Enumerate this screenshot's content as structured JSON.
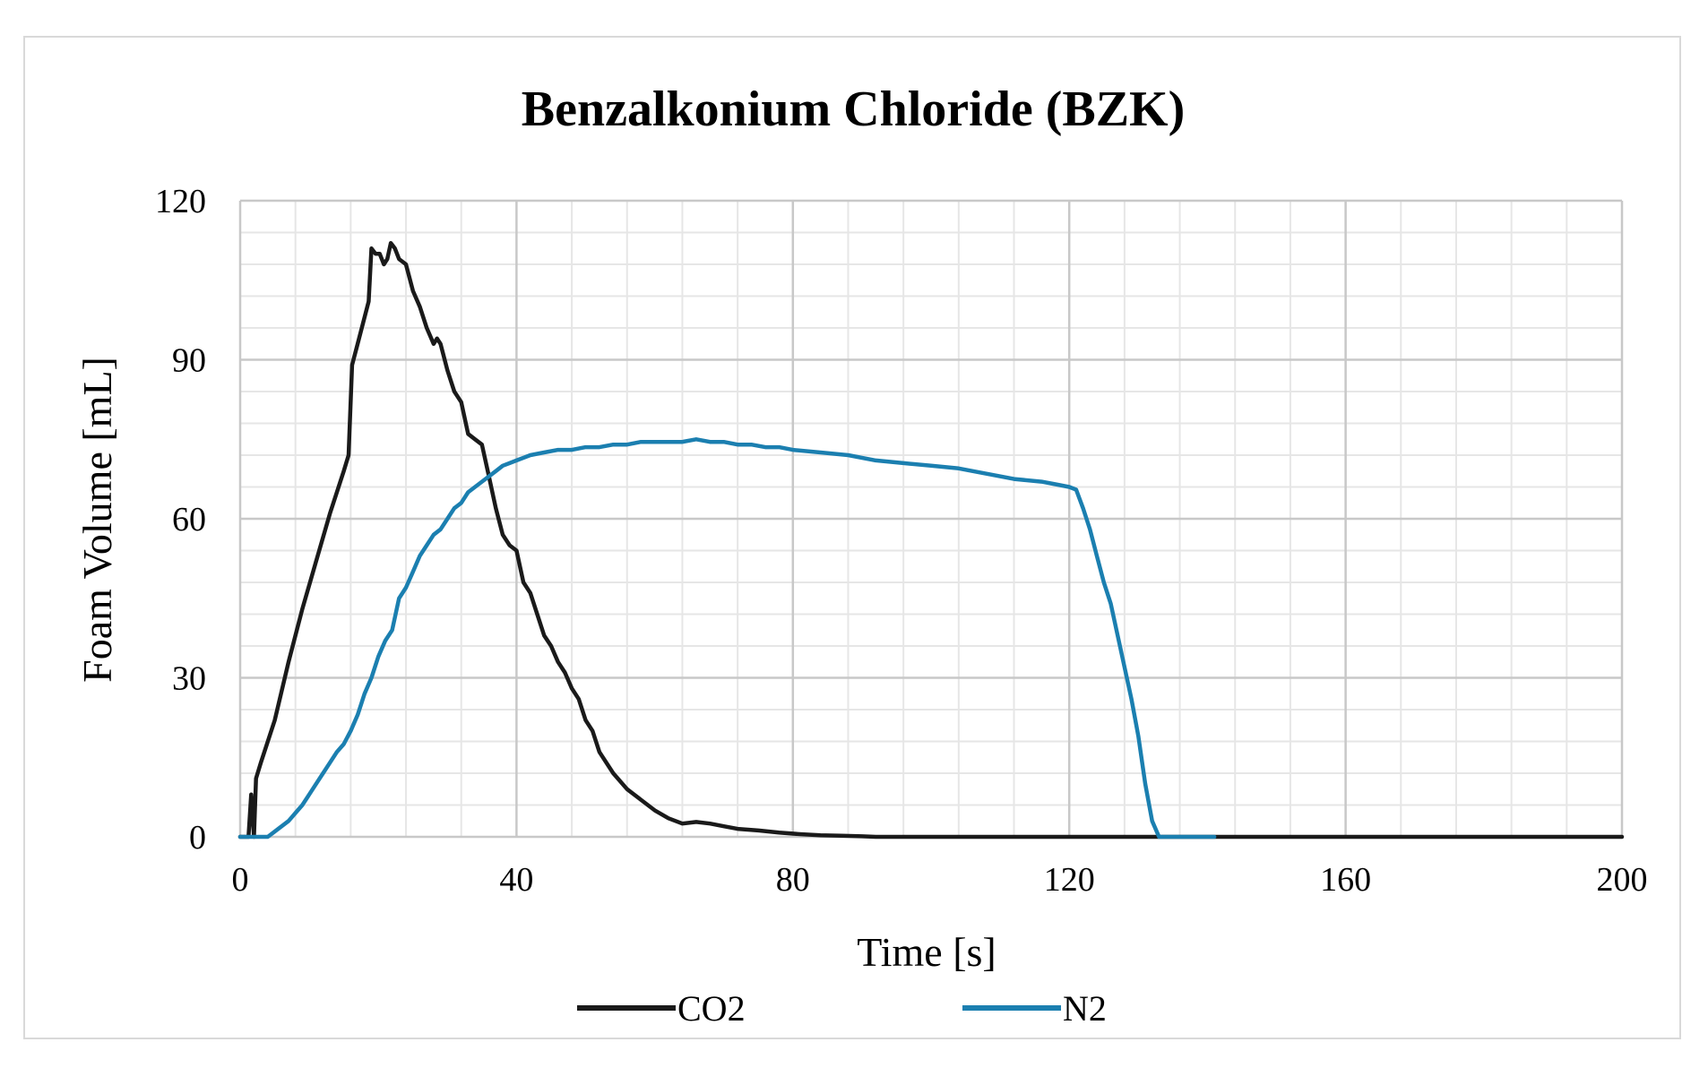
{
  "chart_data": {
    "type": "line",
    "title": "Benzalkonium Chloride (BZK)",
    "xlabel": "Time [s]",
    "ylabel": "Foam Volume [mL]",
    "xlim": [
      0,
      200
    ],
    "ylim": [
      0,
      120
    ],
    "x_ticks": [
      0,
      40,
      80,
      120,
      160,
      200
    ],
    "y_ticks": [
      0,
      30,
      60,
      90,
      120
    ],
    "x_tick_labels": [
      "0",
      "40",
      "80",
      "120",
      "160",
      "200"
    ],
    "y_tick_labels": [
      "0",
      "30",
      "60",
      "90",
      "120"
    ],
    "grid": true,
    "legend_position": "bottom",
    "series": [
      {
        "name": "CO2",
        "color": "#1a1a1a",
        "x": [
          0,
          1.2,
          1.6,
          2.0,
          2.3,
          3,
          5,
          7,
          9,
          11,
          13,
          15,
          15.7,
          16.2,
          17,
          18,
          18.6,
          19,
          19.6,
          20.2,
          20.8,
          21.3,
          21.8,
          22.4,
          23,
          24,
          25,
          26,
          27,
          28,
          28.5,
          29,
          30,
          31,
          32,
          33,
          34,
          35,
          36,
          37,
          38,
          39,
          40,
          41,
          42,
          43,
          44,
          45,
          46,
          47,
          48,
          49,
          50,
          51,
          52,
          54,
          56,
          58,
          60,
          62,
          64,
          66,
          68,
          70,
          72,
          75,
          78,
          81,
          84,
          87,
          90,
          92,
          100,
          120,
          140,
          160,
          180,
          200
        ],
        "values": [
          0,
          0,
          8,
          0,
          11,
          14,
          22,
          33,
          43,
          52,
          61,
          69,
          72,
          89,
          93,
          98,
          101,
          111,
          110,
          110,
          108,
          109,
          112,
          111,
          109,
          108,
          103,
          100,
          96,
          93,
          94,
          93,
          88,
          84,
          82,
          76,
          75,
          74,
          68,
          62,
          57,
          55,
          54,
          48,
          46,
          42,
          38,
          36,
          33,
          31,
          28,
          26,
          22,
          20,
          16,
          12,
          9,
          7,
          5,
          3.5,
          2.5,
          2.8,
          2.5,
          2,
          1.5,
          1.2,
          0.8,
          0.5,
          0.3,
          0.2,
          0.1,
          0,
          0,
          0,
          0,
          0,
          0,
          0
        ]
      },
      {
        "name": "N2",
        "color": "#1b7fb0",
        "x": [
          0,
          1,
          2,
          3,
          4,
          5,
          6,
          7,
          8,
          9,
          10,
          11,
          12,
          13,
          14,
          15,
          16,
          17,
          18,
          19,
          20,
          21,
          22,
          23,
          24,
          25,
          26,
          27,
          28,
          29,
          30,
          31,
          32,
          33,
          34,
          35,
          36,
          37,
          38,
          39,
          40,
          42,
          44,
          46,
          48,
          50,
          52,
          54,
          56,
          58,
          60,
          62,
          64,
          66,
          68,
          70,
          72,
          74,
          76,
          78,
          80,
          84,
          88,
          92,
          96,
          100,
          104,
          108,
          112,
          116,
          118,
          120,
          121,
          122,
          123,
          124,
          125,
          126,
          127,
          128,
          129,
          130,
          131,
          132,
          133,
          134,
          135,
          136,
          137,
          138,
          139,
          140,
          141
        ],
        "values": [
          0,
          0,
          0,
          0,
          0,
          1,
          2,
          3,
          4.5,
          6,
          8,
          10,
          12,
          14,
          16,
          17.5,
          20,
          23,
          27,
          30,
          34,
          37,
          39,
          45,
          47,
          50,
          53,
          55,
          57,
          58,
          60,
          62,
          63,
          65,
          66,
          67,
          68,
          69,
          70,
          70.5,
          71,
          72,
          72.5,
          73,
          73,
          73.5,
          73.5,
          74,
          74,
          74.5,
          74.5,
          74.5,
          74.5,
          75,
          74.5,
          74.5,
          74,
          74,
          73.5,
          73.5,
          73,
          72.5,
          72,
          71,
          70.5,
          70,
          69.5,
          68.5,
          67.5,
          67,
          66.5,
          66,
          65.5,
          62,
          58,
          53,
          48,
          44,
          38,
          32,
          26,
          19,
          10,
          3,
          0,
          0,
          0,
          0,
          0,
          0,
          0,
          0,
          0
        ]
      }
    ]
  }
}
